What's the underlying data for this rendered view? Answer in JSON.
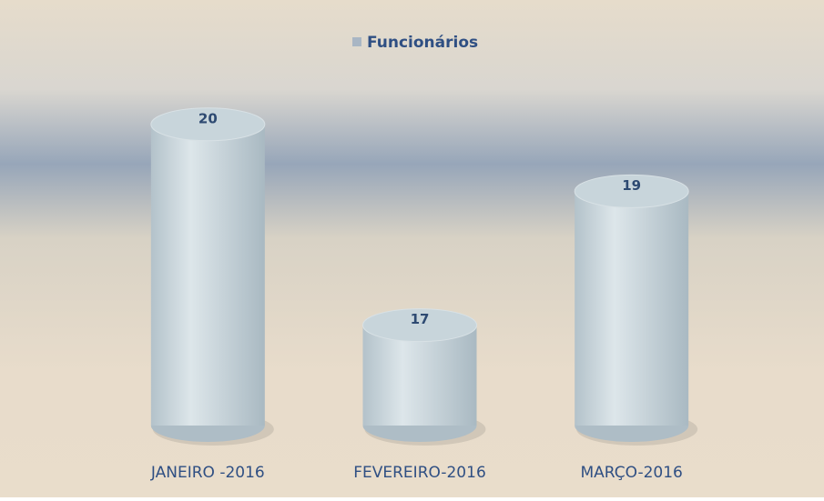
{
  "chart_data": {
    "type": "bar",
    "categories": [
      "JANEIRO -2016",
      "FEVEREIRO-2016",
      "MARÇO-2016"
    ],
    "series": [
      {
        "name": "Funcionários",
        "color": "#c8d5db",
        "values": [
          20,
          17,
          19
        ]
      }
    ],
    "ylim": [
      15.5,
      20.5
    ]
  }
}
